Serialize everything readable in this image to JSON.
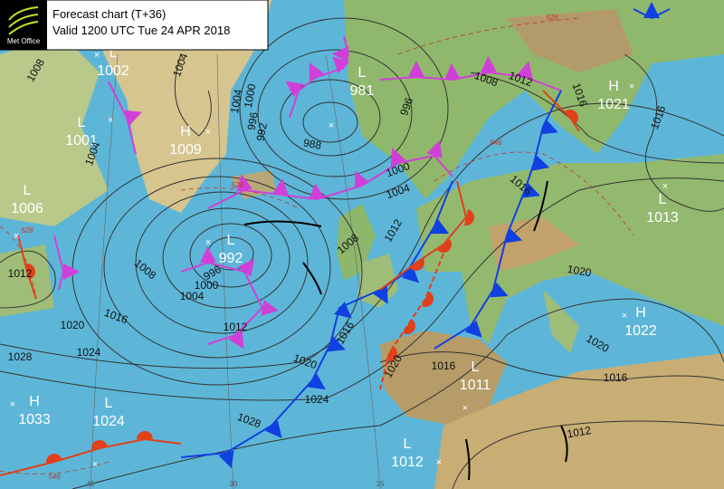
{
  "header": {
    "logo": "Met Office",
    "title": "Forecast chart (T+36)",
    "valid": "Valid 1200 UTC Tue 24 APR 2018"
  },
  "centers": [
    {
      "type": "L",
      "value": "1002"
    },
    {
      "type": "L",
      "value": "1001"
    },
    {
      "type": "H",
      "value": "1009"
    },
    {
      "type": "L",
      "value": "1006"
    },
    {
      "type": "L",
      "value": "981"
    },
    {
      "type": "H",
      "value": "1021"
    },
    {
      "type": "L",
      "value": "1013"
    },
    {
      "type": "L",
      "value": "992"
    },
    {
      "type": "H",
      "value": "1022"
    },
    {
      "type": "L",
      "value": "1011"
    },
    {
      "type": "H",
      "value": "1033"
    },
    {
      "type": "L",
      "value": "1024"
    },
    {
      "type": "L",
      "value": "1012"
    }
  ],
  "isobar_labels": [
    "1008",
    "1004",
    "1004",
    "1000",
    "1004",
    "996",
    "992",
    "988",
    "996",
    "1008",
    "1012",
    "1016",
    "1016",
    "1000",
    "1004",
    "1008",
    "1012",
    "1016",
    "1020",
    "1020",
    "1016",
    "1012",
    "1016",
    "1020",
    "1024",
    "1020",
    "1016",
    "1012",
    "1008",
    "996",
    "1000",
    "1004",
    "1016",
    "1020",
    "1024",
    "1028",
    "1028",
    "1012"
  ],
  "thickness_labels": [
    "528",
    "528",
    "546",
    "528",
    "546"
  ],
  "grid_labels": [
    "45",
    "30",
    "15"
  ]
}
